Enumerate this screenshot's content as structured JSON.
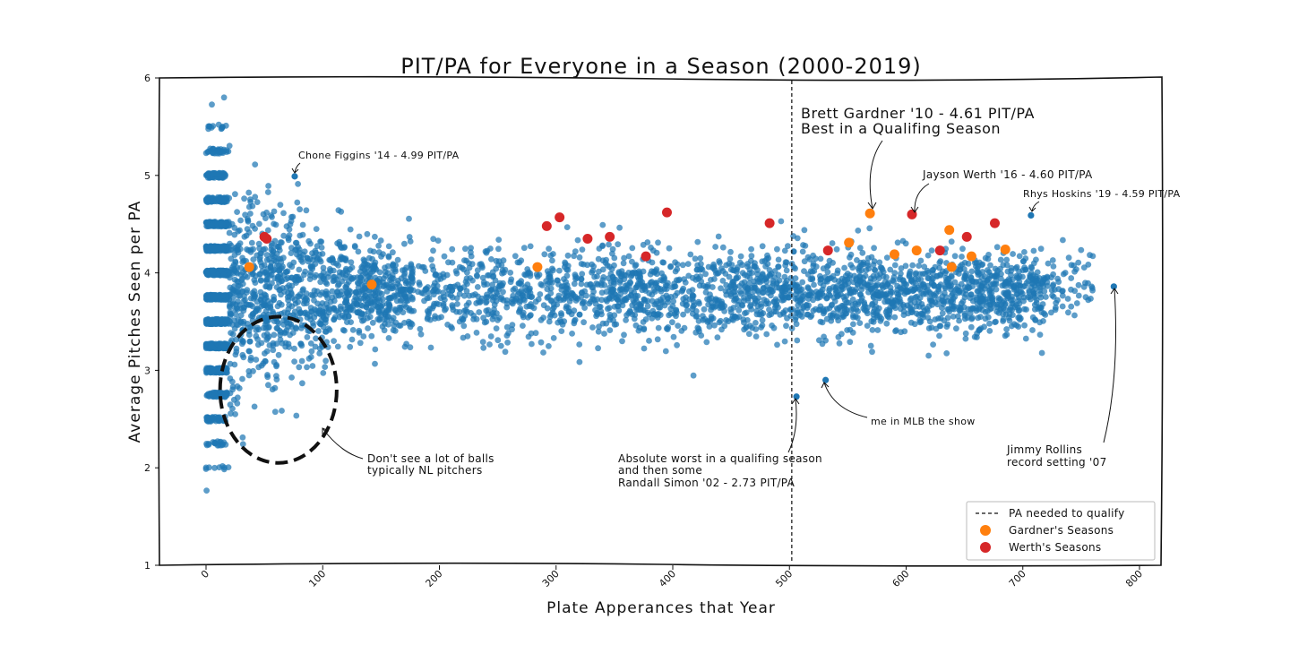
{
  "chart_data": {
    "type": "scatter",
    "title": "PIT/PA for Everyone in a Season (2000-2019)",
    "xlabel": "Plate Apperances that Year",
    "ylabel": "Average Pitches Seen per PA",
    "xlim": [
      -40,
      810
    ],
    "ylim": [
      1,
      6
    ],
    "xticks": [
      0,
      100,
      200,
      300,
      400,
      500,
      600,
      700,
      800
    ],
    "yticks": [
      1,
      2,
      3,
      4,
      5,
      6
    ],
    "grid": false,
    "legend_position": "bottom-right",
    "colors": {
      "all": "#1f77b4",
      "gardner": "#ff7f0e",
      "werth": "#d62728",
      "qualify_line": "#111111"
    },
    "qualify_pa": 502,
    "series": [
      {
        "name": "PA needed to qualify",
        "kind": "vline",
        "x": 502
      },
      {
        "name": "Gardner's Seasons",
        "x": [
          37,
          142,
          284,
          551,
          590,
          609,
          637,
          639,
          656,
          685,
          569
        ],
        "y": [
          4.06,
          3.88,
          4.06,
          4.31,
          4.19,
          4.23,
          4.44,
          4.06,
          4.17,
          4.24,
          4.61
        ]
      },
      {
        "name": "Werth's Seasons",
        "x": [
          50,
          52,
          292,
          303,
          327,
          346,
          377,
          395,
          483,
          533,
          605,
          629,
          652,
          676
        ],
        "y": [
          4.37,
          4.35,
          4.48,
          4.57,
          4.35,
          4.37,
          4.17,
          4.62,
          4.51,
          4.23,
          4.6,
          4.23,
          4.37,
          4.51
        ]
      }
    ],
    "highlights": [
      {
        "x": 76,
        "y": 4.99,
        "label": "Chone Figgins '14 - 4.99 PIT/PA"
      },
      {
        "x": 506,
        "y": 2.73,
        "label": "Absolute worst in a qualifing season"
      },
      {
        "x": 531,
        "y": 2.9,
        "label": "me in MLB the show"
      },
      {
        "x": 707,
        "y": 4.59,
        "label": "Rhys Hoskins '19 - 4.59 PIT/PA"
      },
      {
        "x": 778,
        "y": 3.86,
        "label": "Jimmy Rollins"
      }
    ],
    "annotations": [
      {
        "lines": [
          "Brett Gardner '10 - 4.61 PIT/PA",
          "Best in a Qualifing Season"
        ]
      },
      {
        "lines": [
          "Jayson Werth '16 - 4.60 PIT/PA"
        ]
      },
      {
        "lines": [
          "Chone Figgins '14 - 4.99 PIT/PA"
        ]
      },
      {
        "lines": [
          "Rhys Hoskins '19 - 4.59 PIT/PA"
        ]
      },
      {
        "lines": [
          "Don't see a lot of balls",
          "typically NL pitchers"
        ]
      },
      {
        "lines": [
          "Absolute worst in a qualifing season",
          "and then some",
          "Randall Simon '02 - 2.73 PIT/PA"
        ]
      },
      {
        "lines": [
          "me in MLB the show"
        ]
      },
      {
        "lines": [
          "Jimmy Rollins",
          "record setting '07"
        ]
      }
    ],
    "ellipse": {
      "cx": 62,
      "cy": 2.8,
      "rx": 50,
      "ry": 0.75
    }
  }
}
